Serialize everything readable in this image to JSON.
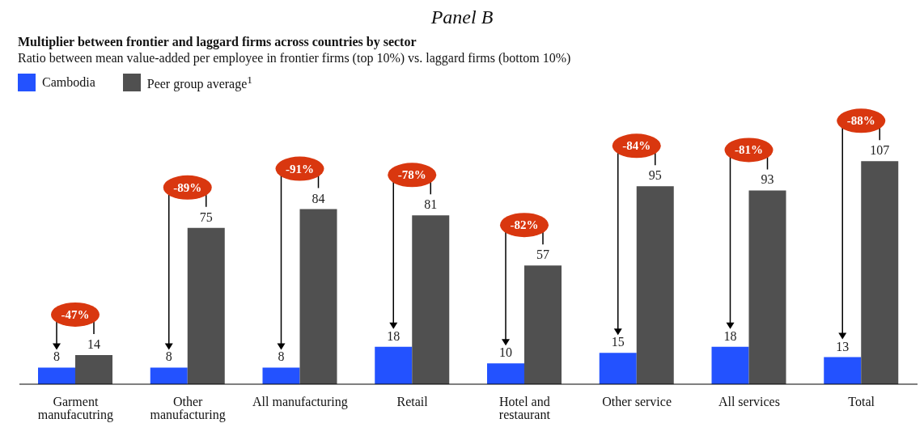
{
  "chart_data": {
    "type": "bar",
    "title": "Panel B",
    "subtitle": "Multiplier between frontier and laggard firms across countries by sector",
    "categories": [
      "Garment manufacutring",
      "Other manufacturing",
      "All manufacturing",
      "Retail",
      "Hotel and restaurant",
      "Other service",
      "All services",
      "Total"
    ],
    "series": [
      {
        "name": "Cambodia",
        "color": "#2352ff",
        "values": [
          8,
          8,
          8,
          18,
          10,
          15,
          18,
          13
        ]
      },
      {
        "name": "Peer group average$^{1}$",
        "color": "#505050",
        "values": [
          14,
          75,
          84,
          81,
          57,
          95,
          93,
          107
        ]
      }
    ],
    "ylim": [
      0,
      125
    ],
    "data_labels": true,
    "legend": "top left",
    "annotations": [
      "Ratio between mean value-added per employee in frontier firms (top 10%) vs. laggard firms (bottom 10%)",
      "-47%",
      "-89%",
      "-91%",
      "-78%",
      "-82%",
      "-84%",
      "-81%",
      "-88%"
    ]
  }
}
